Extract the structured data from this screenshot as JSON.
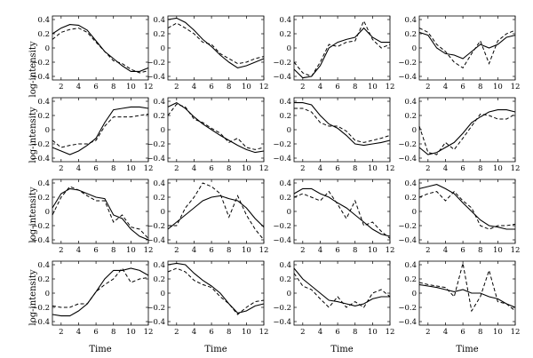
{
  "figure": {
    "xlabel": "Time",
    "ylabel": "log-intensity"
  },
  "chart_data": [
    {
      "type": "line",
      "xlim": [
        1,
        12
      ],
      "ylim": [
        -0.45,
        0.45
      ],
      "xticks": [
        2,
        4,
        6,
        8,
        10,
        12
      ],
      "yticks": [
        -0.4,
        -0.2,
        0,
        0.2,
        0.4
      ],
      "x": [
        1,
        2,
        3,
        4,
        5,
        6,
        7,
        8,
        9,
        10,
        11,
        12
      ],
      "series": [
        {
          "style": "solid",
          "values": [
            0.2,
            0.28,
            0.33,
            0.32,
            0.25,
            0.1,
            -0.05,
            -0.15,
            -0.25,
            -0.33,
            -0.33,
            -0.28
          ]
        },
        {
          "style": "dashed",
          "values": [
            0.12,
            0.22,
            0.26,
            0.28,
            0.22,
            0.08,
            -0.05,
            -0.18,
            -0.22,
            -0.3,
            -0.35,
            -0.32
          ]
        }
      ]
    },
    {
      "type": "line",
      "xlim": [
        1,
        12
      ],
      "ylim": [
        -0.45,
        0.45
      ],
      "xticks": [
        2,
        4,
        6,
        8,
        10,
        12
      ],
      "yticks": [
        -0.4,
        -0.2,
        0,
        0.2,
        0.4
      ],
      "x": [
        1,
        2,
        3,
        4,
        5,
        6,
        7,
        8,
        9,
        10,
        11,
        12
      ],
      "series": [
        {
          "style": "solid",
          "values": [
            0.4,
            0.42,
            0.36,
            0.25,
            0.12,
            0.02,
            -0.1,
            -0.2,
            -0.28,
            -0.25,
            -0.2,
            -0.15
          ]
        },
        {
          "style": "dashed",
          "values": [
            0.28,
            0.35,
            0.28,
            0.2,
            0.08,
            0.05,
            -0.08,
            -0.15,
            -0.22,
            -0.2,
            -0.15,
            -0.12
          ]
        }
      ]
    },
    {
      "type": "line",
      "xlim": [
        1,
        12
      ],
      "ylim": [
        -0.45,
        0.45
      ],
      "xticks": [
        2,
        4,
        6,
        8,
        10,
        12
      ],
      "yticks": [
        -0.4,
        -0.2,
        0,
        0.2,
        0.4
      ],
      "x": [
        1,
        2,
        3,
        4,
        5,
        6,
        7,
        8,
        9,
        10,
        11,
        12
      ],
      "series": [
        {
          "style": "solid",
          "values": [
            -0.3,
            -0.42,
            -0.4,
            -0.25,
            0.0,
            0.08,
            0.12,
            0.15,
            0.28,
            0.15,
            0.08,
            0.08
          ]
        },
        {
          "style": "dashed",
          "values": [
            -0.2,
            -0.35,
            -0.4,
            -0.2,
            0.05,
            0.02,
            0.08,
            0.1,
            0.38,
            0.12,
            0.0,
            0.05
          ]
        }
      ]
    },
    {
      "type": "line",
      "xlim": [
        1,
        12
      ],
      "ylim": [
        -0.45,
        0.45
      ],
      "xticks": [
        2,
        4,
        6,
        8,
        10,
        12
      ],
      "yticks": [
        -0.4,
        -0.2,
        0,
        0.2,
        0.4
      ],
      "x": [
        1,
        2,
        3,
        4,
        5,
        6,
        7,
        8,
        9,
        10,
        11,
        12
      ],
      "series": [
        {
          "style": "solid",
          "values": [
            0.22,
            0.18,
            0.0,
            -0.08,
            -0.1,
            -0.15,
            -0.05,
            0.05,
            0.0,
            0.05,
            0.15,
            0.18
          ]
        },
        {
          "style": "dashed",
          "values": [
            0.28,
            0.22,
            0.05,
            -0.05,
            -0.2,
            -0.28,
            -0.08,
            0.1,
            -0.22,
            0.1,
            0.2,
            0.25
          ]
        }
      ]
    },
    {
      "type": "line",
      "xlim": [
        1,
        12
      ],
      "ylim": [
        -0.45,
        0.45
      ],
      "xticks": [
        2,
        4,
        6,
        8,
        10,
        12
      ],
      "yticks": [
        -0.4,
        -0.2,
        0,
        0.2,
        0.4
      ],
      "x": [
        1,
        2,
        3,
        4,
        5,
        6,
        7,
        8,
        9,
        10,
        11,
        12
      ],
      "series": [
        {
          "style": "solid",
          "values": [
            -0.25,
            -0.3,
            -0.35,
            -0.3,
            -0.22,
            -0.12,
            0.1,
            0.28,
            0.3,
            0.32,
            0.32,
            0.3
          ]
        },
        {
          "style": "dashed",
          "values": [
            -0.15,
            -0.25,
            -0.22,
            -0.2,
            -0.2,
            -0.15,
            0.05,
            0.18,
            0.18,
            0.18,
            0.2,
            0.22
          ]
        }
      ]
    },
    {
      "type": "line",
      "xlim": [
        1,
        12
      ],
      "ylim": [
        -0.45,
        0.45
      ],
      "xticks": [
        2,
        4,
        6,
        8,
        10,
        12
      ],
      "yticks": [
        -0.4,
        -0.2,
        0,
        0.2,
        0.4
      ],
      "x": [
        1,
        2,
        3,
        4,
        5,
        6,
        7,
        8,
        9,
        10,
        11,
        12
      ],
      "series": [
        {
          "style": "solid",
          "values": [
            0.32,
            0.38,
            0.3,
            0.18,
            0.08,
            0.0,
            -0.08,
            -0.15,
            -0.22,
            -0.28,
            -0.32,
            -0.3
          ]
        },
        {
          "style": "dashed",
          "values": [
            0.2,
            0.36,
            0.32,
            0.15,
            0.1,
            0.02,
            -0.05,
            -0.18,
            -0.12,
            -0.25,
            -0.28,
            -0.25
          ]
        }
      ]
    },
    {
      "type": "line",
      "xlim": [
        1,
        12
      ],
      "ylim": [
        -0.45,
        0.45
      ],
      "xticks": [
        2,
        4,
        6,
        8,
        10,
        12
      ],
      "yticks": [
        -0.4,
        -0.2,
        0,
        0.2,
        0.4
      ],
      "x": [
        1,
        2,
        3,
        4,
        5,
        6,
        7,
        8,
        9,
        10,
        11,
        12
      ],
      "series": [
        {
          "style": "solid",
          "values": [
            0.38,
            0.38,
            0.35,
            0.2,
            0.08,
            0.02,
            -0.08,
            -0.2,
            -0.22,
            -0.2,
            -0.18,
            -0.15
          ]
        },
        {
          "style": "dashed",
          "values": [
            0.3,
            0.3,
            0.25,
            0.1,
            0.05,
            0.05,
            -0.02,
            -0.15,
            -0.18,
            -0.15,
            -0.12,
            -0.08
          ]
        }
      ]
    },
    {
      "type": "line",
      "xlim": [
        1,
        12
      ],
      "ylim": [
        -0.45,
        0.45
      ],
      "xticks": [
        2,
        4,
        6,
        8,
        10,
        12
      ],
      "yticks": [
        -0.4,
        -0.2,
        0,
        0.2,
        0.4
      ],
      "x": [
        1,
        2,
        3,
        4,
        5,
        6,
        7,
        8,
        9,
        10,
        11,
        12
      ],
      "series": [
        {
          "style": "solid",
          "values": [
            -0.25,
            -0.35,
            -0.32,
            -0.25,
            -0.18,
            -0.05,
            0.1,
            0.18,
            0.25,
            0.28,
            0.28,
            0.25
          ]
        },
        {
          "style": "dashed",
          "values": [
            0.05,
            -0.32,
            -0.35,
            -0.18,
            -0.28,
            -0.12,
            0.05,
            0.22,
            0.2,
            0.15,
            0.15,
            0.22
          ]
        }
      ]
    },
    {
      "type": "line",
      "xlim": [
        1,
        12
      ],
      "ylim": [
        -0.45,
        0.45
      ],
      "xticks": [
        2,
        4,
        6,
        8,
        10,
        12
      ],
      "yticks": [
        -0.4,
        -0.2,
        0,
        0.2,
        0.4
      ],
      "x": [
        1,
        2,
        3,
        4,
        5,
        6,
        7,
        8,
        9,
        10,
        11,
        12
      ],
      "series": [
        {
          "style": "solid",
          "values": [
            0.05,
            0.25,
            0.32,
            0.3,
            0.25,
            0.2,
            0.18,
            -0.05,
            -0.1,
            -0.25,
            -0.35,
            -0.4
          ]
        },
        {
          "style": "dashed",
          "values": [
            -0.05,
            0.2,
            0.35,
            0.3,
            0.22,
            0.15,
            0.15,
            -0.15,
            -0.05,
            -0.22,
            -0.25,
            -0.38
          ]
        }
      ]
    },
    {
      "type": "line",
      "xlim": [
        1,
        12
      ],
      "ylim": [
        -0.45,
        0.45
      ],
      "xticks": [
        2,
        4,
        6,
        8,
        10,
        12
      ],
      "yticks": [
        -0.4,
        -0.2,
        0,
        0.2,
        0.4
      ],
      "x": [
        1,
        2,
        3,
        4,
        5,
        6,
        7,
        8,
        9,
        10,
        11,
        12
      ],
      "series": [
        {
          "style": "solid",
          "values": [
            -0.25,
            -0.15,
            -0.05,
            0.05,
            0.15,
            0.2,
            0.22,
            0.18,
            0.15,
            0.05,
            -0.1,
            -0.22
          ]
        },
        {
          "style": "dashed",
          "values": [
            -0.2,
            -0.2,
            0.05,
            0.2,
            0.4,
            0.35,
            0.25,
            -0.08,
            0.22,
            -0.05,
            -0.25,
            -0.4
          ]
        }
      ]
    },
    {
      "type": "line",
      "xlim": [
        1,
        12
      ],
      "ylim": [
        -0.45,
        0.45
      ],
      "xticks": [
        2,
        4,
        6,
        8,
        10,
        12
      ],
      "yticks": [
        -0.4,
        -0.2,
        0,
        0.2,
        0.4
      ],
      "x": [
        1,
        2,
        3,
        4,
        5,
        6,
        7,
        8,
        9,
        10,
        11,
        12
      ],
      "series": [
        {
          "style": "solid",
          "values": [
            0.25,
            0.32,
            0.32,
            0.25,
            0.2,
            0.12,
            0.05,
            -0.05,
            -0.15,
            -0.25,
            -0.32,
            -0.35
          ]
        },
        {
          "style": "dashed",
          "values": [
            0.2,
            0.25,
            0.2,
            0.15,
            0.28,
            0.1,
            -0.1,
            0.15,
            -0.2,
            -0.15,
            -0.28,
            -0.38
          ]
        }
      ]
    },
    {
      "type": "line",
      "xlim": [
        1,
        12
      ],
      "ylim": [
        -0.45,
        0.45
      ],
      "xticks": [
        2,
        4,
        6,
        8,
        10,
        12
      ],
      "yticks": [
        -0.4,
        -0.2,
        0,
        0.2,
        0.4
      ],
      "x": [
        1,
        2,
        3,
        4,
        5,
        6,
        7,
        8,
        9,
        10,
        11,
        12
      ],
      "series": [
        {
          "style": "solid",
          "values": [
            0.32,
            0.35,
            0.38,
            0.32,
            0.25,
            0.12,
            0.0,
            -0.12,
            -0.2,
            -0.22,
            -0.25,
            -0.25
          ]
        },
        {
          "style": "dashed",
          "values": [
            0.2,
            0.25,
            0.28,
            0.15,
            0.28,
            0.15,
            0.05,
            -0.2,
            -0.25,
            -0.2,
            -0.2,
            -0.18
          ]
        }
      ]
    },
    {
      "type": "line",
      "xlim": [
        1,
        12
      ],
      "ylim": [
        -0.45,
        0.45
      ],
      "xticks": [
        2,
        4,
        6,
        8,
        10,
        12
      ],
      "yticks": [
        -0.4,
        -0.2,
        0,
        0.2,
        0.4
      ],
      "x": [
        1,
        2,
        3,
        4,
        5,
        6,
        7,
        8,
        9,
        10,
        11,
        12
      ],
      "series": [
        {
          "style": "solid",
          "values": [
            -0.3,
            -0.32,
            -0.32,
            -0.25,
            -0.15,
            0.02,
            0.2,
            0.32,
            0.32,
            0.35,
            0.32,
            0.25
          ]
        },
        {
          "style": "dashed",
          "values": [
            -0.18,
            -0.2,
            -0.2,
            -0.15,
            -0.15,
            0.02,
            0.12,
            0.2,
            0.35,
            0.15,
            0.2,
            0.22
          ]
        }
      ]
    },
    {
      "type": "line",
      "xlim": [
        1,
        12
      ],
      "ylim": [
        -0.45,
        0.45
      ],
      "xticks": [
        2,
        4,
        6,
        8,
        10,
        12
      ],
      "yticks": [
        -0.4,
        -0.2,
        0,
        0.2,
        0.4
      ],
      "x": [
        1,
        2,
        3,
        4,
        5,
        6,
        7,
        8,
        9,
        10,
        11,
        12
      ],
      "series": [
        {
          "style": "solid",
          "values": [
            0.4,
            0.42,
            0.4,
            0.28,
            0.18,
            0.1,
            0.0,
            -0.15,
            -0.28,
            -0.25,
            -0.18,
            -0.15
          ]
        },
        {
          "style": "dashed",
          "values": [
            0.3,
            0.35,
            0.3,
            0.18,
            0.12,
            0.08,
            -0.05,
            -0.15,
            -0.3,
            -0.2,
            -0.12,
            -0.1
          ]
        }
      ]
    },
    {
      "type": "line",
      "xlim": [
        1,
        12
      ],
      "ylim": [
        -0.45,
        0.45
      ],
      "xticks": [
        2,
        4,
        6,
        8,
        10,
        12
      ],
      "yticks": [
        -0.4,
        -0.2,
        0,
        0.2,
        0.4
      ],
      "x": [
        1,
        2,
        3,
        4,
        5,
        6,
        7,
        8,
        9,
        10,
        11,
        12
      ],
      "series": [
        {
          "style": "solid",
          "values": [
            0.35,
            0.2,
            0.1,
            0.0,
            -0.1,
            -0.12,
            -0.15,
            -0.18,
            -0.15,
            -0.08,
            -0.05,
            -0.05
          ]
        },
        {
          "style": "dashed",
          "values": [
            0.28,
            0.1,
            0.05,
            -0.08,
            -0.2,
            -0.05,
            -0.2,
            -0.12,
            -0.2,
            0.0,
            0.05,
            -0.05
          ]
        }
      ]
    },
    {
      "type": "line",
      "xlim": [
        1,
        12
      ],
      "ylim": [
        -0.45,
        0.45
      ],
      "xticks": [
        2,
        4,
        6,
        8,
        10,
        12
      ],
      "yticks": [
        -0.4,
        -0.2,
        0,
        0.2,
        0.4
      ],
      "x": [
        1,
        2,
        3,
        4,
        5,
        6,
        7,
        8,
        9,
        10,
        11,
        12
      ],
      "series": [
        {
          "style": "solid",
          "values": [
            0.12,
            0.1,
            0.08,
            0.05,
            0.02,
            0.05,
            0.0,
            0.0,
            -0.05,
            -0.08,
            -0.15,
            -0.2
          ]
        },
        {
          "style": "dashed",
          "values": [
            0.15,
            0.12,
            0.1,
            0.08,
            -0.05,
            0.42,
            -0.25,
            -0.05,
            0.32,
            -0.12,
            -0.15,
            -0.25
          ]
        }
      ]
    }
  ]
}
